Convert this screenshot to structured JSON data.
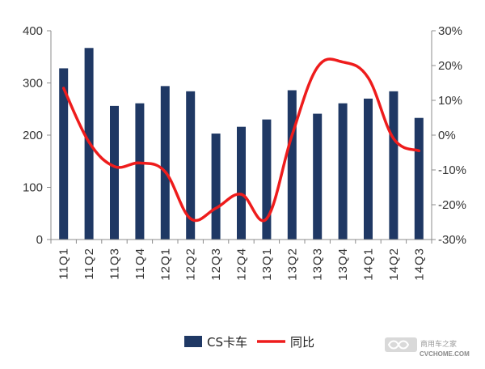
{
  "chart_data": {
    "type": "bar",
    "categories": [
      "11Q1",
      "11Q2",
      "11Q3",
      "11Q4",
      "12Q1",
      "12Q2",
      "12Q3",
      "12Q4",
      "13Q1",
      "13Q2",
      "13Q3",
      "13Q4",
      "14Q1",
      "14Q2",
      "14Q3"
    ],
    "series": [
      {
        "name": "CS卡车",
        "type": "bar",
        "axis": "left",
        "color": "#1f3864",
        "values": [
          328,
          367,
          256,
          261,
          294,
          284,
          203,
          216,
          230,
          286,
          241,
          261,
          270,
          284,
          233
        ]
      },
      {
        "name": "同比",
        "type": "line",
        "axis": "right",
        "color": "#ee1c1c",
        "values": [
          13.5,
          -2,
          -9,
          -8,
          -10.5,
          -24,
          -21,
          -17,
          -24,
          0,
          19.5,
          21,
          16.5,
          -1,
          -4.5
        ]
      }
    ],
    "y_left": {
      "ylim": [
        0,
        400
      ],
      "ticks": [
        "0",
        "100",
        "200",
        "300",
        "400"
      ]
    },
    "y_right": {
      "ylim": [
        -30,
        30
      ],
      "ticks": [
        "-30%",
        "-20%",
        "-10%",
        "0%",
        "10%",
        "20%",
        "30%"
      ]
    },
    "grid": false,
    "legend": "bottom-center"
  },
  "watermark": {
    "name": "商用车之家",
    "url": "CVCHOME.COM"
  }
}
